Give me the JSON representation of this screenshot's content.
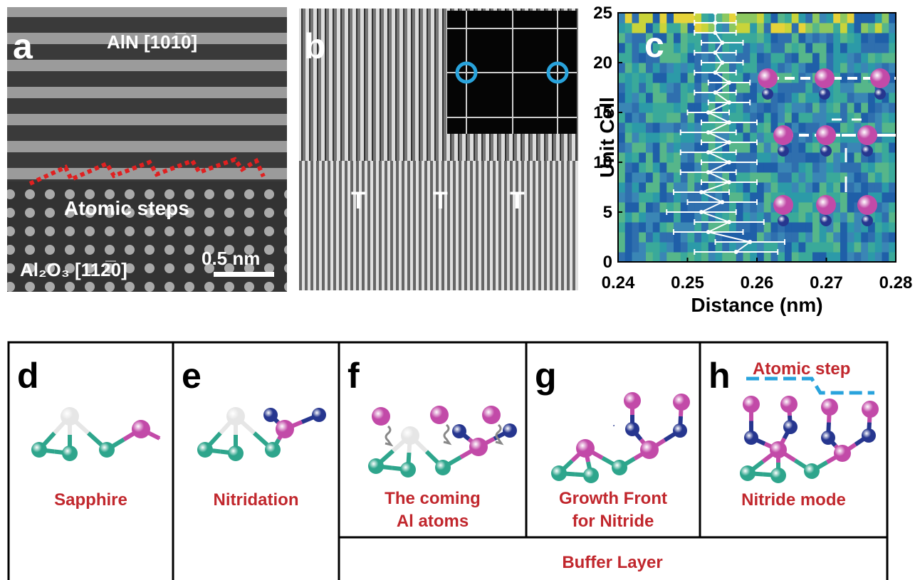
{
  "panel_a": {
    "label": "a",
    "orientation_top": "AlN [101̅0]",
    "steps": "Atomic steps",
    "orientation_bottom": "Al₂O₃ [112̅0]",
    "scale_bar": "0.5 nm"
  },
  "panel_b": {
    "label": "b",
    "markers": [
      "T",
      "T",
      "T"
    ]
  },
  "chart_data": {
    "type": "scatter",
    "label": "c",
    "ylabel": "Unit Cell",
    "xlabel": "Distance (nm)",
    "xlim": [
      0.24,
      0.28
    ],
    "xticks": [
      0.24,
      0.25,
      0.26,
      0.27,
      0.28
    ],
    "ylim": [
      0,
      25
    ],
    "yticks": [
      0,
      5,
      10,
      15,
      20,
      25
    ],
    "color": "#ffffff",
    "series": [
      {
        "y": [
          1,
          2,
          3,
          4,
          5,
          6,
          7,
          8,
          9,
          10,
          11,
          12,
          13,
          14,
          15,
          16,
          17,
          18,
          19,
          20,
          21,
          22,
          23,
          24,
          25
        ],
        "x": [
          0.257,
          0.259,
          0.253,
          0.256,
          0.252,
          0.255,
          0.252,
          0.256,
          0.253,
          0.256,
          0.253,
          0.256,
          0.253,
          0.256,
          0.253,
          0.256,
          0.254,
          0.256,
          0.254,
          0.255,
          0.254,
          0.255,
          0.254,
          0.254,
          0.254
        ],
        "error": [
          0.006,
          0.005,
          0.005,
          0.005,
          0.005,
          0.005,
          0.004,
          0.004,
          0.004,
          0.004,
          0.004,
          0.004,
          0.004,
          0.004,
          0.003,
          0.003,
          0.003,
          0.003,
          0.003,
          0.003,
          0.003,
          0.003,
          0.003,
          0.003,
          0.003
        ]
      }
    ]
  },
  "steps": [
    {
      "label": "d",
      "caption": [
        "Sapphire"
      ]
    },
    {
      "label": "e",
      "caption": [
        "Nitridation"
      ]
    },
    {
      "label": "f",
      "caption": [
        "The coming",
        "Al atoms"
      ]
    },
    {
      "label": "g",
      "caption": [
        "Growth Front",
        "for Nitride"
      ]
    },
    {
      "label": "h",
      "caption": [
        "Nitride mode"
      ],
      "annotation": "Atomic step"
    }
  ],
  "buffer_label": "Buffer Layer"
}
